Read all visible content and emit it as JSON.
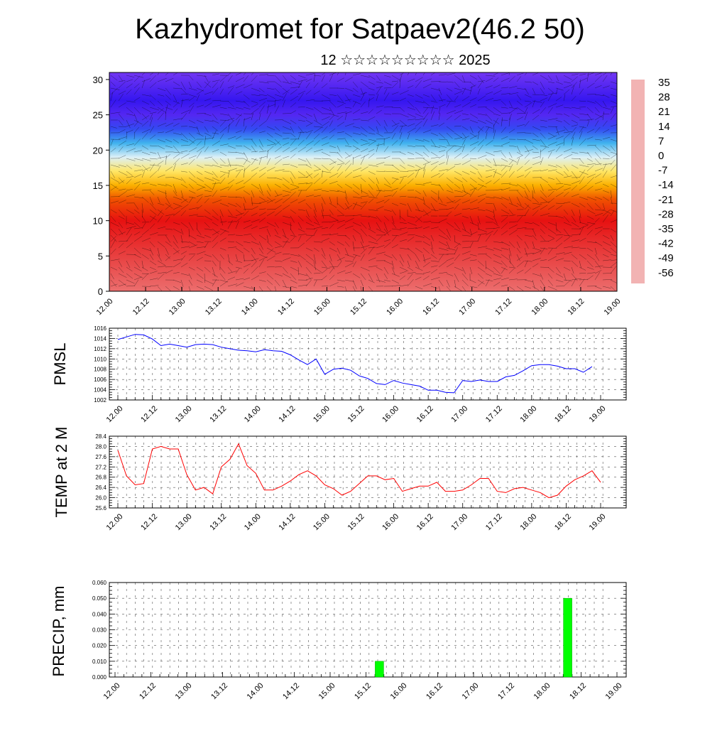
{
  "title": "Kazhydromet for Satpaev2(46.2 50)",
  "subtitle": "12 ☆☆☆☆☆☆☆☆☆ 2025",
  "chart_data": [
    {
      "type": "heatmap",
      "description_free": true,
      "y_ticks": [
        "0",
        "5",
        "10",
        "15",
        "20",
        "25",
        "30"
      ],
      "ylim": [
        0,
        31
      ],
      "x_ticks": [
        "12.00",
        "12.12",
        "13.00",
        "13.12",
        "14.00",
        "14.12",
        "15.00",
        "15.12",
        "16.00",
        "16.12",
        "17.00",
        "17.12",
        "18.00",
        "18.12",
        "19.00"
      ],
      "colorbar_labels": [
        "35",
        "28",
        "21",
        "14",
        "7",
        "0",
        "-7",
        "-14",
        "-21",
        "-28",
        "-35",
        "-42",
        "-49",
        "-56"
      ],
      "colorbar_range": [
        -63,
        42
      ],
      "profile_levels": [
        0,
        5,
        10,
        13,
        15,
        17,
        19,
        21,
        23,
        25,
        27,
        31
      ],
      "profile_temps": [
        36,
        32,
        24,
        14,
        4,
        -6,
        -20,
        -32,
        -46,
        -58,
        -54,
        -62
      ],
      "colors": {
        "stops": [
          "#f2b3b3",
          "#e83a3a",
          "#e60000",
          "#f57a00",
          "#ffd200",
          "#fff5b0",
          "#d8f0ff",
          "#3fb6ee",
          "#3a6cf4",
          "#2a10f0",
          "#7a3bf2"
        ]
      },
      "grid": false
    },
    {
      "type": "line",
      "ylabel": "PMSL",
      "ylim": [
        1002,
        1016
      ],
      "y_ticks": [
        "1002",
        "1004",
        "1006",
        "1008",
        "1010",
        "1012",
        "1014",
        "1016"
      ],
      "x_ticks": [
        "12.00",
        "12.12",
        "13.00",
        "13.12",
        "14.00",
        "14.12",
        "15.00",
        "15.12",
        "16.00",
        "16.12",
        "17.00",
        "17.12",
        "18.00",
        "18.12",
        "19.00"
      ],
      "series": [
        {
          "color": "#0000ff",
          "values": [
            1013.8,
            1014.3,
            1014.8,
            1014.7,
            1013.9,
            1012.6,
            1012.9,
            1012.6,
            1012.3,
            1012.8,
            1012.9,
            1012.8,
            1012.3,
            1012.0,
            1011.7,
            1011.6,
            1011.4,
            1011.8,
            1011.6,
            1011.5,
            1010.8,
            1009.8,
            1008.9,
            1010.0,
            1007.0,
            1008.0,
            1008.2,
            1007.8,
            1006.7,
            1006.2,
            1005.2,
            1005.0,
            1005.8,
            1005.3,
            1005.0,
            1004.7,
            1003.9,
            1003.9,
            1003.5,
            1003.4,
            1005.8,
            1005.6,
            1005.9,
            1005.6,
            1005.6,
            1006.5,
            1006.8,
            1007.7,
            1008.7,
            1008.9,
            1008.9,
            1008.6,
            1008.1,
            1008.1,
            1007.4,
            1008.5
          ]
        }
      ],
      "grid": true
    },
    {
      "type": "line",
      "ylabel": "TEMP at 2 M",
      "ylim": [
        25.6,
        28.4
      ],
      "y_ticks": [
        "25.6",
        "26.0",
        "26.4",
        "26.8",
        "27.2",
        "27.6",
        "28.0",
        "28.4"
      ],
      "x_ticks": [
        "12.00",
        "12.12",
        "13.00",
        "13.12",
        "14.00",
        "14.12",
        "15.00",
        "15.12",
        "16.00",
        "16.12",
        "17.00",
        "17.12",
        "18.00",
        "18.12",
        "19.00"
      ],
      "series": [
        {
          "color": "#ff0000",
          "values": [
            27.85,
            26.85,
            26.5,
            26.55,
            27.9,
            28.0,
            27.9,
            27.9,
            26.9,
            26.3,
            26.4,
            26.15,
            27.2,
            27.5,
            28.1,
            27.25,
            26.95,
            26.3,
            26.3,
            26.45,
            26.65,
            26.9,
            27.05,
            26.85,
            26.5,
            26.35,
            26.1,
            26.25,
            26.55,
            26.85,
            26.85,
            26.7,
            26.75,
            26.25,
            26.35,
            26.45,
            26.45,
            26.6,
            26.25,
            26.25,
            26.3,
            26.5,
            26.75,
            26.75,
            26.25,
            26.2,
            26.35,
            26.4,
            26.3,
            26.2,
            26.0,
            26.1,
            26.45,
            26.7,
            26.85,
            27.05,
            26.6
          ]
        }
      ],
      "grid": true
    },
    {
      "type": "bar",
      "ylabel": "PRECIP, mm",
      "ylim": [
        0,
        0.06
      ],
      "y_ticks": [
        "0.000",
        "0.010",
        "0.020",
        "0.030",
        "0.040",
        "0.050",
        "0.060"
      ],
      "x_ticks": [
        "12.00",
        "12.12",
        "13.00",
        "13.12",
        "14.00",
        "14.12",
        "15.00",
        "15.12",
        "16.00",
        "16.12",
        "17.00",
        "17.12",
        "18.00",
        "18.12",
        "19.00"
      ],
      "bars": [
        {
          "x": 14.75,
          "value": 0.01
        },
        {
          "x": 25.25,
          "value": 0.05
        }
      ],
      "bar_color": "#00ff00",
      "grid": true
    }
  ]
}
